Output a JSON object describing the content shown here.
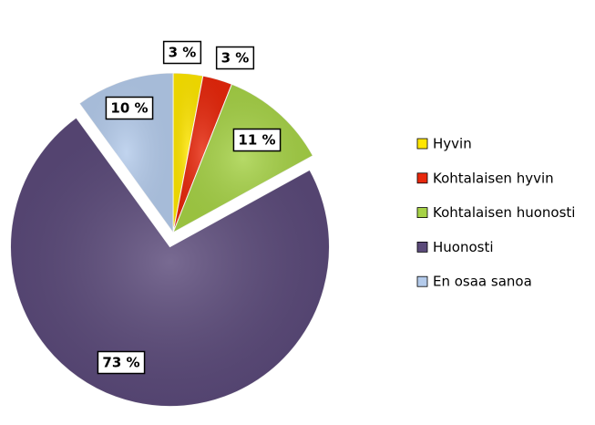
{
  "chart_data": {
    "type": "pie",
    "categories": [
      "Hyvin",
      "Kohtalaisen hyvin",
      "Kohtalaisen huonosti",
      "Huonosti",
      "En osaa sanoa"
    ],
    "values": [
      3,
      3,
      11,
      73,
      10
    ],
    "value_labels": [
      "3 %",
      "3 %",
      "11 %",
      "73 %",
      "10 %"
    ],
    "colors": [
      "#ffe600",
      "#e8280c",
      "#a6d246",
      "#5b4a7a",
      "#b4cbeb"
    ],
    "legend": "right"
  }
}
